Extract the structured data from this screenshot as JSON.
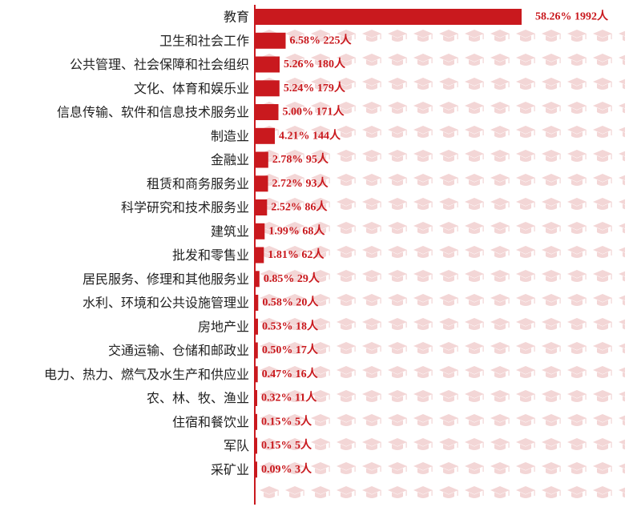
{
  "colors": {
    "bar": "#c9191e",
    "track_icon": "#f3d6d6",
    "axis": "#c9191e",
    "label_text": "#222222",
    "value_text": "#c9191e"
  },
  "icons": {
    "track": "graduation-cap-icon"
  },
  "chart_data": {
    "type": "bar",
    "orientation": "horizontal",
    "title": "",
    "xlabel": "",
    "ylabel": "",
    "grid": false,
    "legend": "none",
    "xlim": [
      0,
      1992
    ],
    "categories": [
      "教育",
      "卫生和社会工作",
      "公共管理、社会保障和社会组织",
      "文化、体育和娱乐业",
      "信息传输、软件和信息技术服务业",
      "制造业",
      "金融业",
      "租赁和商务服务业",
      "科学研究和技术服务业",
      "建筑业",
      "批发和零售业",
      "居民服务、修理和其他服务业",
      "水利、环境和公共设施管理业",
      "房地产业",
      "交通运输、仓储和邮政业",
      "电力、热力、燃气及水生产和供应业",
      "农、林、牧、渔业",
      "住宿和餐饮业",
      "军队",
      "采矿业"
    ],
    "values": [
      1992,
      225,
      180,
      179,
      171,
      144,
      95,
      93,
      86,
      68,
      62,
      29,
      20,
      18,
      17,
      16,
      11,
      5,
      5,
      3
    ],
    "percentages": [
      "58.26%",
      "6.58%",
      "5.26%",
      "5.24%",
      "5.00%",
      "4.21%",
      "2.78%",
      "2.72%",
      "2.52%",
      "1.99%",
      "1.81%",
      "0.85%",
      "0.58%",
      "0.53%",
      "0.50%",
      "0.47%",
      "0.32%",
      "0.15%",
      "0.15%",
      "0.09%"
    ],
    "data_labels": [
      "58.26% 1992人",
      "6.58% 225人",
      "5.26% 180人",
      "5.24% 179人",
      "5.00% 171人",
      "4.21% 144人",
      "2.78% 95人",
      "2.72% 93人",
      "2.52% 86人",
      "1.99% 68人",
      "1.81% 62人",
      "0.85% 29人",
      "0.58% 20人",
      "0.53% 18人",
      "0.50% 17人",
      "0.47% 16人",
      "0.32% 11人",
      "0.15% 5人",
      "0.15% 5人",
      "0.09% 3人"
    ]
  }
}
